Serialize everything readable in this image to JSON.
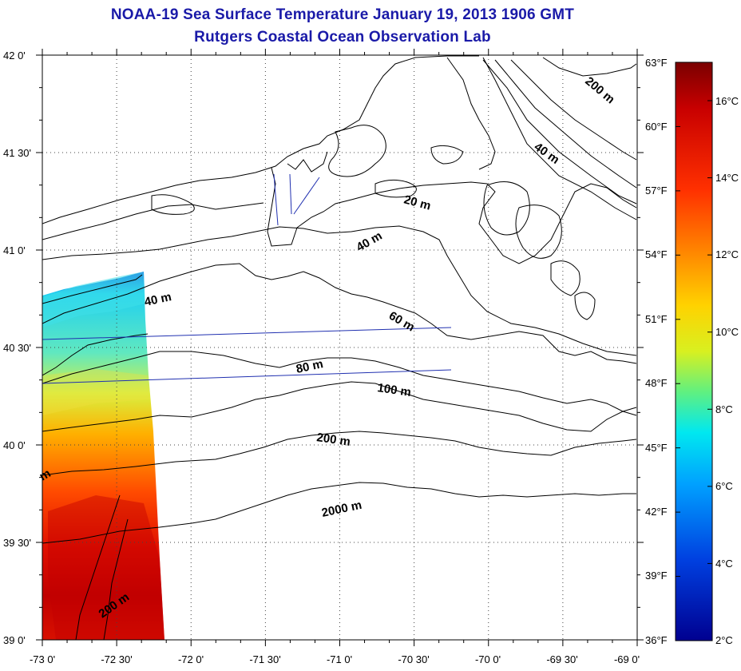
{
  "header": {
    "title": "NOAA-19 Sea Surface Temperature January 19, 2013 1906 GMT",
    "subtitle": "Rutgers Coastal Ocean Observation Lab"
  },
  "axes": {
    "lat_ticks": [
      "42 0'",
      "41 30'",
      "41 0'",
      "40 30'",
      "40 0'",
      "39 30'",
      "39 0'"
    ],
    "lon_ticks": [
      "-73 0'",
      "-72 30'",
      "-72 0'",
      "-71 30'",
      "-71 0'",
      "-70 30'",
      "-70 0'",
      "-69 30'",
      "-69 0'"
    ]
  },
  "colorbar": {
    "fahrenheit_labels": [
      "63°F",
      "60°F",
      "57°F",
      "54°F",
      "51°F",
      "48°F",
      "45°F",
      "42°F",
      "39°F",
      "36°F"
    ],
    "celsius_labels": [
      "16°C",
      "14°C",
      "12°C",
      "10°C",
      "8°C",
      "6°C",
      "4°C",
      "2°C"
    ],
    "colors": [
      "#7a0000",
      "#c80000",
      "#ff3000",
      "#ff8800",
      "#ffd200",
      "#d8f020",
      "#60f080",
      "#00e8f0",
      "#00a0ff",
      "#0040e0",
      "#000090"
    ]
  },
  "contours": {
    "labels": [
      "200 m",
      "40 m",
      "20 m",
      "40 m",
      "40 m",
      "60 m",
      "80 m",
      "100 m",
      "200 m",
      "2000 m",
      "200 m",
      "m"
    ]
  }
}
